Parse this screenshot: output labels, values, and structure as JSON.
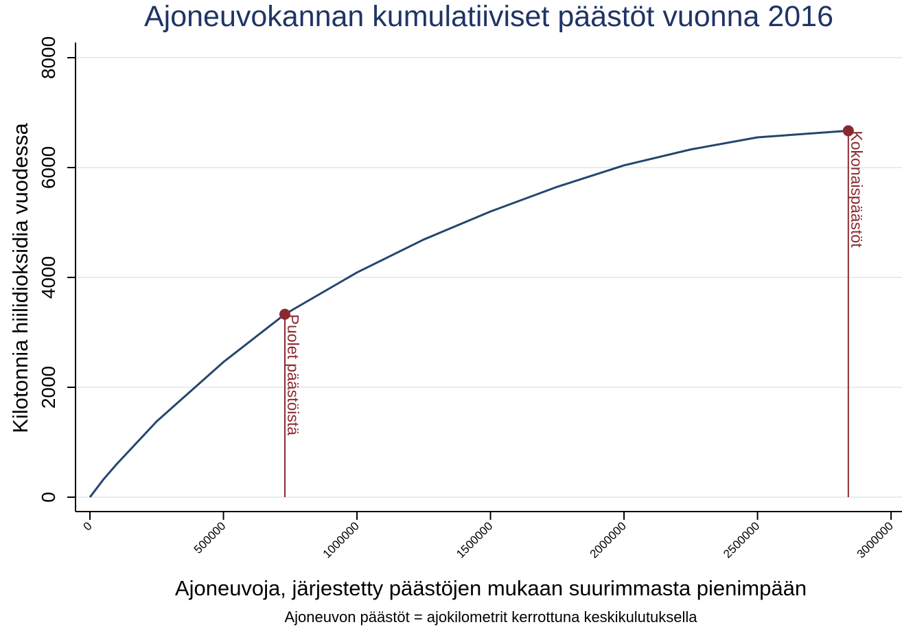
{
  "chart_data": {
    "type": "line",
    "title": "Ajoneuvokannan kumulatiiviset päästöt vuonna 2016",
    "x_label": "Ajoneuvoja, järjestetty päästöjen mukaan suurimmasta pienimpään",
    "y_label": "Kilotonnia hiilidioksidia vuodessa",
    "note": "Ajoneuvon päästöt = ajokilometrit kerrottuna keskikulutuksella",
    "x": [
      0,
      50000,
      100000,
      250000,
      500000,
      730000,
      1000000,
      1250000,
      1500000,
      1750000,
      2000000,
      2250000,
      2500000,
      2840000
    ],
    "series": [
      {
        "name": "Kumulatiiviset päästöt",
        "color": "#24466e",
        "values": [
          0,
          320,
          600,
          1380,
          2460,
          3330,
          4090,
          4690,
          5200,
          5650,
          6040,
          6330,
          6550,
          6670
        ]
      }
    ],
    "markers": [
      {
        "x": 730000,
        "y": 3330,
        "label": "Puolet päästöistä",
        "color": "#8b2a2e"
      },
      {
        "x": 2840000,
        "y": 6670,
        "label": "Kokonaispäästöt",
        "color": "#8b2a2e"
      }
    ],
    "xlim": [
      -54000,
      3041000
    ],
    "ylim": [
      -262,
      8275
    ],
    "xticks": [
      0,
      500000,
      1000000,
      1500000,
      2000000,
      2500000,
      3000000
    ],
    "yticks": [
      0,
      2000,
      4000,
      6000,
      8000
    ],
    "grid": true
  }
}
